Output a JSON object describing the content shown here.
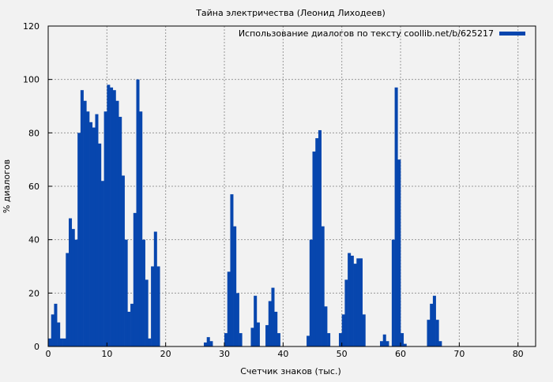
{
  "chart_data": {
    "type": "area",
    "title": "Тайна электричества (Леонид Лиходеев)",
    "xlabel": "Счетчик знаков (тыс.)",
    "ylabel": "% диалогов",
    "xlim": [
      0,
      83
    ],
    "ylim": [
      0,
      120
    ],
    "xticks": [
      0,
      10,
      20,
      30,
      40,
      50,
      60,
      70,
      80
    ],
    "yticks": [
      0,
      20,
      40,
      60,
      80,
      100,
      120
    ],
    "grid": true,
    "legend_position": "top-right",
    "color": "#0746ae",
    "series": [
      {
        "name": "Использование диалогов по тексту coollib.net/b/625217",
        "x": [
          0,
          0.5,
          1,
          1.5,
          2,
          2.5,
          3,
          3.5,
          4,
          4.5,
          5,
          5.5,
          6,
          6.5,
          7,
          7.5,
          8,
          8.5,
          9,
          9.5,
          10,
          10.5,
          11,
          11.5,
          12,
          12.5,
          13,
          13.5,
          14,
          14.5,
          15,
          15.5,
          16,
          16.5,
          17,
          17.5,
          18,
          18.5,
          26.5,
          27,
          27.5,
          30,
          30.5,
          31,
          31.5,
          32,
          32.5,
          34.5,
          35,
          35.5,
          37,
          37.5,
          38,
          38.5,
          39,
          44,
          44.5,
          45,
          45.5,
          46,
          46.5,
          47,
          47.5,
          49.5,
          50,
          50.5,
          51,
          51.5,
          52,
          52.5,
          53,
          53.5,
          56.5,
          57,
          57.5,
          58.5,
          59,
          59.5,
          60,
          60.5,
          64.5,
          65,
          65.5,
          66,
          66.5
        ],
        "y": [
          3,
          12,
          16,
          9,
          3,
          3,
          35,
          48,
          44,
          40,
          80,
          96,
          92,
          88,
          84,
          82,
          87,
          76,
          62,
          88,
          98,
          97,
          96,
          92,
          86,
          64,
          40,
          13,
          16,
          50,
          100,
          88,
          40,
          25,
          3,
          30,
          43,
          30,
          1.5,
          3.5,
          2,
          5,
          28,
          57,
          45,
          20,
          5,
          7,
          19,
          9,
          8,
          17,
          22,
          13,
          5,
          4,
          40,
          73,
          78,
          81,
          45,
          15,
          5,
          5,
          12,
          25,
          35,
          34,
          31,
          33,
          33,
          12,
          2,
          4.5,
          2,
          40,
          97,
          70,
          5,
          1,
          10,
          16,
          19,
          10,
          2
        ]
      }
    ]
  }
}
